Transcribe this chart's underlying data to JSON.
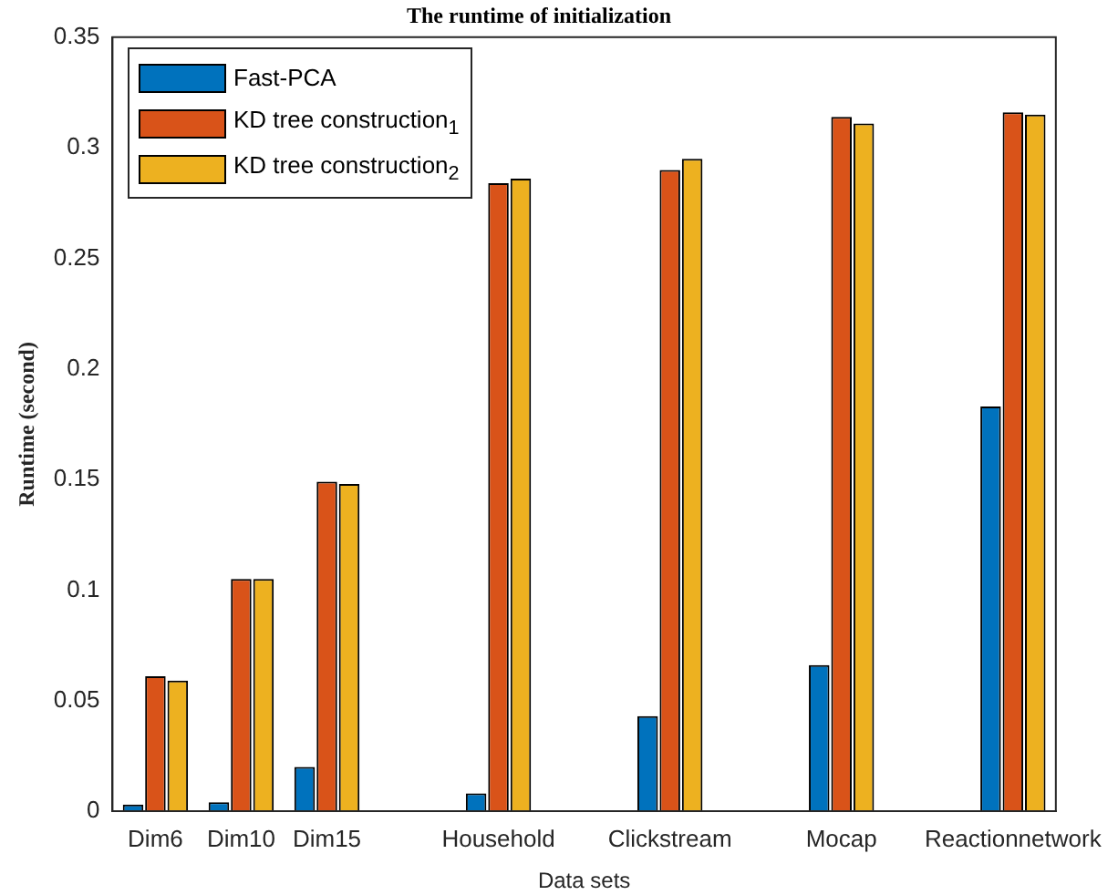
{
  "chart_data": {
    "type": "bar",
    "title": "The runtime of initialization",
    "xlabel": "Data sets",
    "ylabel": "Runtime (second)",
    "categories": [
      "Dim6",
      "Dim10",
      "Dim15",
      null,
      "Household",
      null,
      "Clickstream",
      null,
      "Mocap",
      null,
      "Reactionnetwork"
    ],
    "series": [
      {
        "name": "Fast-PCA",
        "color": "#0072bd",
        "values": [
          0.003,
          0.004,
          0.02,
          null,
          0.008,
          null,
          0.043,
          null,
          0.066,
          null,
          0.183
        ]
      },
      {
        "name": "KD tree construction$_{1}$",
        "color": "#d95319",
        "values": [
          0.061,
          0.105,
          0.149,
          null,
          0.284,
          null,
          0.29,
          null,
          0.314,
          null,
          0.316
        ]
      },
      {
        "name": "KD tree construction$_{2}$",
        "color": "#edb120",
        "values": [
          0.059,
          0.105,
          0.148,
          null,
          0.286,
          null,
          0.295,
          null,
          0.311,
          null,
          0.315
        ]
      }
    ],
    "ylim": [
      0,
      0.35
    ],
    "yticks": [
      0,
      0.05,
      0.1,
      0.15,
      0.2,
      0.25,
      0.3,
      0.35
    ],
    "grid": false,
    "legend": "top left"
  }
}
